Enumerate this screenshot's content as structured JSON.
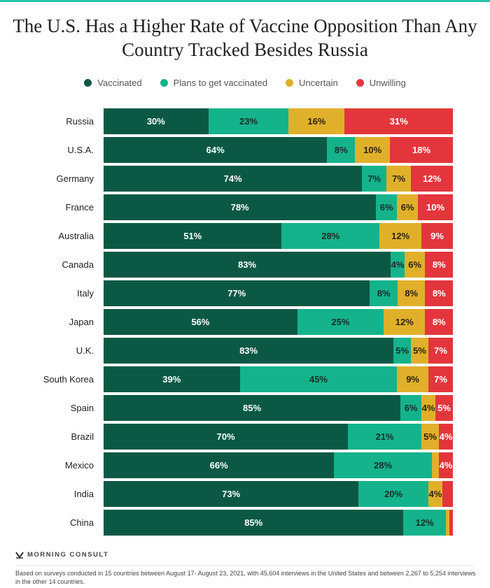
{
  "chart_data": {
    "type": "bar",
    "orientation": "horizontal",
    "stacked": true,
    "title": "The U.S. Has a Higher Rate of Vaccine Opposition Than Any Country Tracked Besides Russia",
    "xlim": [
      0,
      100
    ],
    "grid": false,
    "legend_position": "top",
    "categories": [
      "Russia",
      "U.S.A.",
      "Germany",
      "France",
      "Australia",
      "Canada",
      "Italy",
      "Japan",
      "U.K.",
      "South Korea",
      "Spain",
      "Brazil",
      "Mexico",
      "India",
      "China"
    ],
    "series": [
      {
        "name": "Vaccinated",
        "color": "#0b5944",
        "label_color": "#ffffff",
        "values": [
          30,
          64,
          74,
          78,
          51,
          83,
          77,
          56,
          83,
          39,
          85,
          70,
          66,
          73,
          85
        ],
        "labels": [
          "30%",
          "64%",
          "74%",
          "78%",
          "51%",
          "83%",
          "77%",
          "56%",
          "83%",
          "39%",
          "85%",
          "70%",
          "66%",
          "73%",
          "85%"
        ]
      },
      {
        "name": "Plans to get vaccinated",
        "color": "#14b38b",
        "label_color": "#1c2b26",
        "values": [
          23,
          8,
          7,
          6,
          28,
          4,
          8,
          25,
          5,
          45,
          6,
          21,
          28,
          20,
          12
        ],
        "labels": [
          "23%",
          "8%",
          "7%",
          "6%",
          "28%",
          "4%",
          "8%",
          "25%",
          "5%",
          "45%",
          "6%",
          "21%",
          "28%",
          "20%",
          "12%"
        ]
      },
      {
        "name": "Uncertain",
        "color": "#e1b02a",
        "label_color": "#2a2410",
        "values": [
          16,
          10,
          7,
          6,
          12,
          6,
          8,
          12,
          5,
          9,
          4,
          5,
          2,
          4,
          1
        ],
        "labels": [
          "16%",
          "10%",
          "7%",
          "6%",
          "12%",
          "6%",
          "8%",
          "12%",
          "5%",
          "9%",
          "4%",
          "5%",
          "",
          "4%",
          ""
        ]
      },
      {
        "name": "Unwilling",
        "color": "#e3363c",
        "label_color": "#ffffff",
        "values": [
          31,
          18,
          12,
          10,
          9,
          8,
          8,
          8,
          7,
          7,
          5,
          4,
          4,
          3,
          1
        ],
        "labels": [
          "31%",
          "18%",
          "12%",
          "10%",
          "9%",
          "8%",
          "8%",
          "8%",
          "7%",
          "7%",
          "5%",
          "4%",
          "4%",
          "",
          ""
        ]
      }
    ]
  },
  "footer": {
    "brand": "MORNING CONSULT",
    "note": "Based on surveys conducted in 15 countries between August 17- August 23, 2021, with 45,604 interviews in the United States and between 2,267 to 5,254 interviews in the other 14 countries."
  }
}
